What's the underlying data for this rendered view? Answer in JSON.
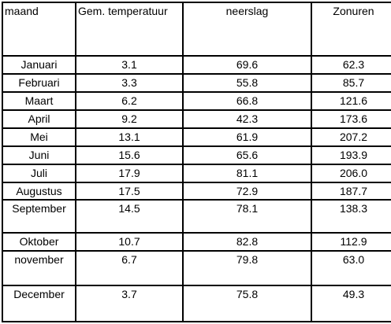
{
  "table": {
    "header": [
      "maand",
      "Gem. temperatuur",
      "neerslag",
      "Zonuren"
    ],
    "rows": [
      [
        "Januari",
        "3.1",
        "69.6",
        "62.3"
      ],
      [
        "Februari",
        "3.3",
        "55.8",
        "85.7"
      ],
      [
        "Maart",
        "6.2",
        "66.8",
        "121.6"
      ],
      [
        "April",
        "9.2",
        "42.3",
        "173.6"
      ],
      [
        "Mei",
        "13.1",
        "61.9",
        "207.2"
      ],
      [
        "Juni",
        "15.6",
        "65.6",
        "193.9"
      ],
      [
        "Juli",
        "17.9",
        "81.1",
        "206.0"
      ],
      [
        "Augustus",
        "17.5",
        "72.9",
        "187.7"
      ],
      [
        "September",
        "14.5",
        "78.1",
        "138.3"
      ],
      [
        "Oktober",
        "10.7",
        "82.8",
        "112.9"
      ],
      [
        "november",
        "6.7",
        "79.8",
        "63.0"
      ],
      [
        "December",
        "3.7",
        "75.8",
        "49.3"
      ]
    ]
  }
}
